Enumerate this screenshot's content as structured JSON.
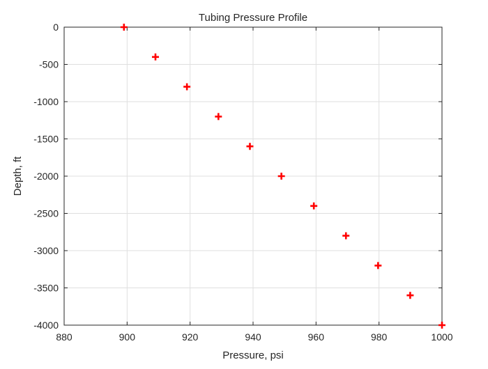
{
  "chart_data": {
    "type": "scatter",
    "title": "Tubing Pressure Profile",
    "xlabel": "Pressure, psi",
    "ylabel": "Depth, ft",
    "xlim": [
      880,
      1000
    ],
    "ylim": [
      -4000,
      0
    ],
    "xticks": [
      880,
      900,
      920,
      940,
      960,
      980,
      1000
    ],
    "yticks": [
      0,
      -500,
      -1000,
      -1500,
      -2000,
      -2500,
      -3000,
      -3500,
      -4000
    ],
    "grid": true,
    "marker": "plus",
    "marker_color": "#ff0000",
    "points": [
      {
        "x": 899,
        "y": 0
      },
      {
        "x": 909,
        "y": -400
      },
      {
        "x": 919,
        "y": -800
      },
      {
        "x": 929,
        "y": -1200
      },
      {
        "x": 939,
        "y": -1600
      },
      {
        "x": 949,
        "y": -2000
      },
      {
        "x": 959.3,
        "y": -2400
      },
      {
        "x": 969.5,
        "y": -2800
      },
      {
        "x": 979.7,
        "y": -3200
      },
      {
        "x": 989.9,
        "y": -3600
      },
      {
        "x": 1000,
        "y": -4000
      }
    ]
  }
}
